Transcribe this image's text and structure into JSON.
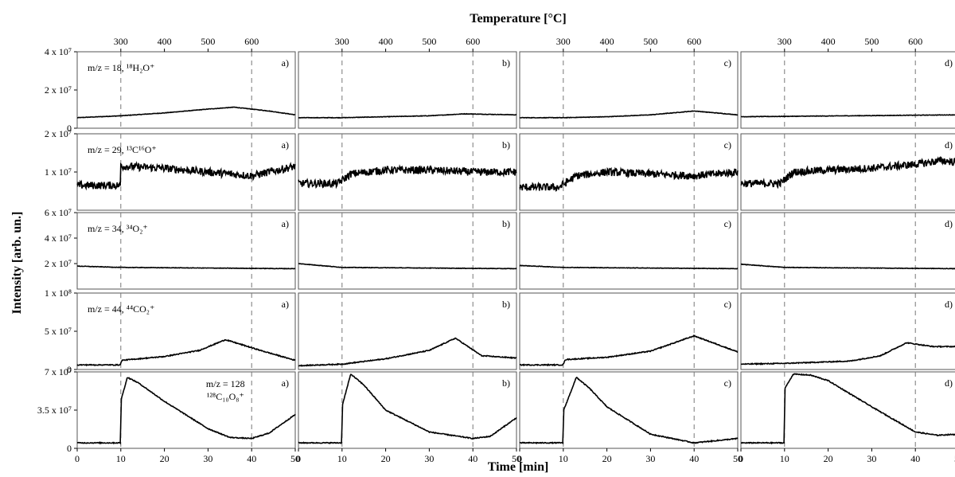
{
  "figure": {
    "top_axis_title": "Temperature [°C]",
    "bottom_axis_title": "Time [min]",
    "y_axis_title": "Intensity [arb. un.]"
  },
  "chart_data": {
    "type": "line",
    "layout": "grid-5-rows-4-columns",
    "columns": [
      "a)",
      "b)",
      "c)",
      "d)"
    ],
    "x_axis": {
      "label": "Time [min]",
      "range": [
        0,
        50
      ],
      "ticks": [
        "0",
        "10",
        "20",
        "30",
        "40",
        "50"
      ]
    },
    "top_axis": {
      "label": "Temperature [°C]",
      "ticks": [
        "300",
        "400",
        "500",
        "600"
      ],
      "tick_times_min": [
        10,
        20,
        30,
        40
      ]
    },
    "reference_lines_min": [
      10,
      40
    ],
    "line_color": "#000000",
    "rows": [
      {
        "label": "m/z = 18, ¹⁸H₂O⁺",
        "ylim": [
          0,
          40000000
        ],
        "ytick_values": [
          0,
          20000000,
          40000000
        ],
        "ytick_labels": [
          "0",
          "2 x 10⁷",
          "4 x 10⁷"
        ],
        "series": [
          {
            "panel": "a)",
            "noise": 0.003,
            "x": [
              0,
              10,
              20,
              30,
              36,
              44,
              50
            ],
            "y": [
              5500000,
              6500000,
              8000000,
              10000000,
              11000000,
              9000000,
              7000000
            ]
          },
          {
            "panel": "b)",
            "noise": 0.003,
            "x": [
              0,
              10,
              20,
              30,
              38,
              50
            ],
            "y": [
              5500000,
              5500000,
              6000000,
              6500000,
              7500000,
              7000000
            ]
          },
          {
            "panel": "c)",
            "noise": 0.003,
            "x": [
              0,
              10,
              20,
              30,
              40,
              50
            ],
            "y": [
              5500000,
              5500000,
              6000000,
              7000000,
              9000000,
              7000000
            ]
          },
          {
            "panel": "d)",
            "noise": 0.003,
            "x": [
              0,
              50
            ],
            "y": [
              6000000,
              7000000
            ]
          }
        ]
      },
      {
        "label": "m/z = 29, ¹³C¹⁶O⁺",
        "ylim": [
          0,
          20000000
        ],
        "ytick_values": [
          10000000,
          20000000
        ],
        "ytick_labels": [
          "1 x 10⁷",
          "2 x 10⁷"
        ],
        "series": [
          {
            "panel": "a)",
            "noise": 0.05,
            "x": [
              0,
              9.9,
              10,
              10.5,
              20,
              30,
              40,
              50
            ],
            "y": [
              6500000,
              6500000,
              12000000,
              11500000,
              11000000,
              10000000,
              9000000,
              11500000
            ]
          },
          {
            "panel": "b)",
            "noise": 0.05,
            "x": [
              0,
              9,
              12,
              20,
              30,
              40,
              50
            ],
            "y": [
              7000000,
              7000000,
              9500000,
              10500000,
              10500000,
              10000000,
              10000000
            ]
          },
          {
            "panel": "c)",
            "noise": 0.05,
            "x": [
              0,
              9,
              13,
              20,
              30,
              40,
              50
            ],
            "y": [
              6000000,
              6000000,
              9000000,
              10000000,
              9500000,
              9000000,
              10000000
            ]
          },
          {
            "panel": "d)",
            "noise": 0.05,
            "x": [
              0,
              9,
              12,
              20,
              30,
              40,
              46,
              50
            ],
            "y": [
              7000000,
              7000000,
              10000000,
              10500000,
              11000000,
              12000000,
              13000000,
              12500000
            ]
          }
        ]
      },
      {
        "label": "m/z = 34, ³⁴O₂⁺",
        "ylim": [
          0,
          60000000
        ],
        "ytick_values": [
          20000000,
          40000000,
          60000000
        ],
        "ytick_labels": [
          "2 x 10⁷",
          "4 x 10⁷",
          "6 x 10⁷"
        ],
        "series": [
          {
            "panel": "a)",
            "noise": 0.003,
            "x": [
              0,
              10,
              50
            ],
            "y": [
              18000000,
              17000000,
              16000000
            ]
          },
          {
            "panel": "b)",
            "noise": 0.003,
            "x": [
              0,
              10,
              50
            ],
            "y": [
              20000000,
              17000000,
              16000000
            ]
          },
          {
            "panel": "c)",
            "noise": 0.003,
            "x": [
              0,
              10,
              50
            ],
            "y": [
              18500000,
              17000000,
              16000000
            ]
          },
          {
            "panel": "d)",
            "noise": 0.003,
            "x": [
              0,
              10,
              50
            ],
            "y": [
              19500000,
              17000000,
              16000000
            ]
          }
        ]
      },
      {
        "label": "m/z = 44, ⁴⁴CO₂⁺",
        "ylim": [
          0,
          100000000
        ],
        "ytick_values": [
          0,
          50000000,
          100000000
        ],
        "ytick_labels": [
          "0",
          "5 x 10⁷",
          "1 x 10⁸"
        ],
        "series": [
          {
            "panel": "a)",
            "noise": 0.006,
            "x": [
              0,
              9.9,
              10.2,
              20,
              28,
              34,
              42,
              50
            ],
            "y": [
              6000000,
              6000000,
              12000000,
              17000000,
              25000000,
              39000000,
              25000000,
              12000000
            ]
          },
          {
            "panel": "b)",
            "noise": 0.006,
            "x": [
              0,
              10,
              20,
              30,
              36,
              42,
              50
            ],
            "y": [
              5000000,
              7000000,
              14000000,
              25000000,
              41000000,
              18000000,
              15000000
            ]
          },
          {
            "panel": "c)",
            "noise": 0.006,
            "x": [
              0,
              9.9,
              10.5,
              20,
              30,
              40,
              50
            ],
            "y": [
              6000000,
              6000000,
              13000000,
              16000000,
              24000000,
              44000000,
              23000000
            ]
          },
          {
            "panel": "d)",
            "noise": 0.006,
            "x": [
              0,
              10,
              25,
              32,
              38,
              44,
              50
            ],
            "y": [
              7000000,
              8000000,
              11000000,
              18000000,
              35000000,
              30000000,
              30000000
            ]
          }
        ]
      },
      {
        "label": "m/z = 128",
        "label2": "¹²⁸C₁₀O₈⁺",
        "ylim": [
          0,
          70000000
        ],
        "ytick_values": [
          0,
          35000000,
          70000000
        ],
        "ytick_labels": [
          "0",
          "3.5 x 10⁷",
          "7 x 10⁷"
        ],
        "series": [
          {
            "panel": "a)",
            "noise": 0.006,
            "x": [
              0,
              9.9,
              10.1,
              11.5,
              14,
              20,
              30,
              35,
              40,
              44,
              50
            ],
            "y": [
              5000000,
              5000000,
              45000000,
              65000000,
              60000000,
              43000000,
              18000000,
              10000000,
              9000000,
              14000000,
              31000000
            ]
          },
          {
            "panel": "b)",
            "noise": 0.006,
            "x": [
              0,
              9.9,
              10.1,
              12,
              15,
              20,
              30,
              40,
              44,
              50
            ],
            "y": [
              5000000,
              5000000,
              40000000,
              68000000,
              58000000,
              35000000,
              15000000,
              9000000,
              11000000,
              28000000
            ]
          },
          {
            "panel": "c)",
            "noise": 0.006,
            "x": [
              0,
              9.9,
              10.1,
              13,
              16,
              20,
              30,
              40,
              50
            ],
            "y": [
              5000000,
              5000000,
              35000000,
              65000000,
              55000000,
              38000000,
              13000000,
              5000000,
              9000000
            ]
          },
          {
            "panel": "d)",
            "noise": 0.006,
            "x": [
              0,
              9.9,
              10.1,
              12,
              16,
              20,
              30,
              40,
              45,
              50
            ],
            "y": [
              5000000,
              5000000,
              55000000,
              68000000,
              67000000,
              62000000,
              38000000,
              15000000,
              12000000,
              13000000
            ]
          }
        ]
      }
    ]
  }
}
